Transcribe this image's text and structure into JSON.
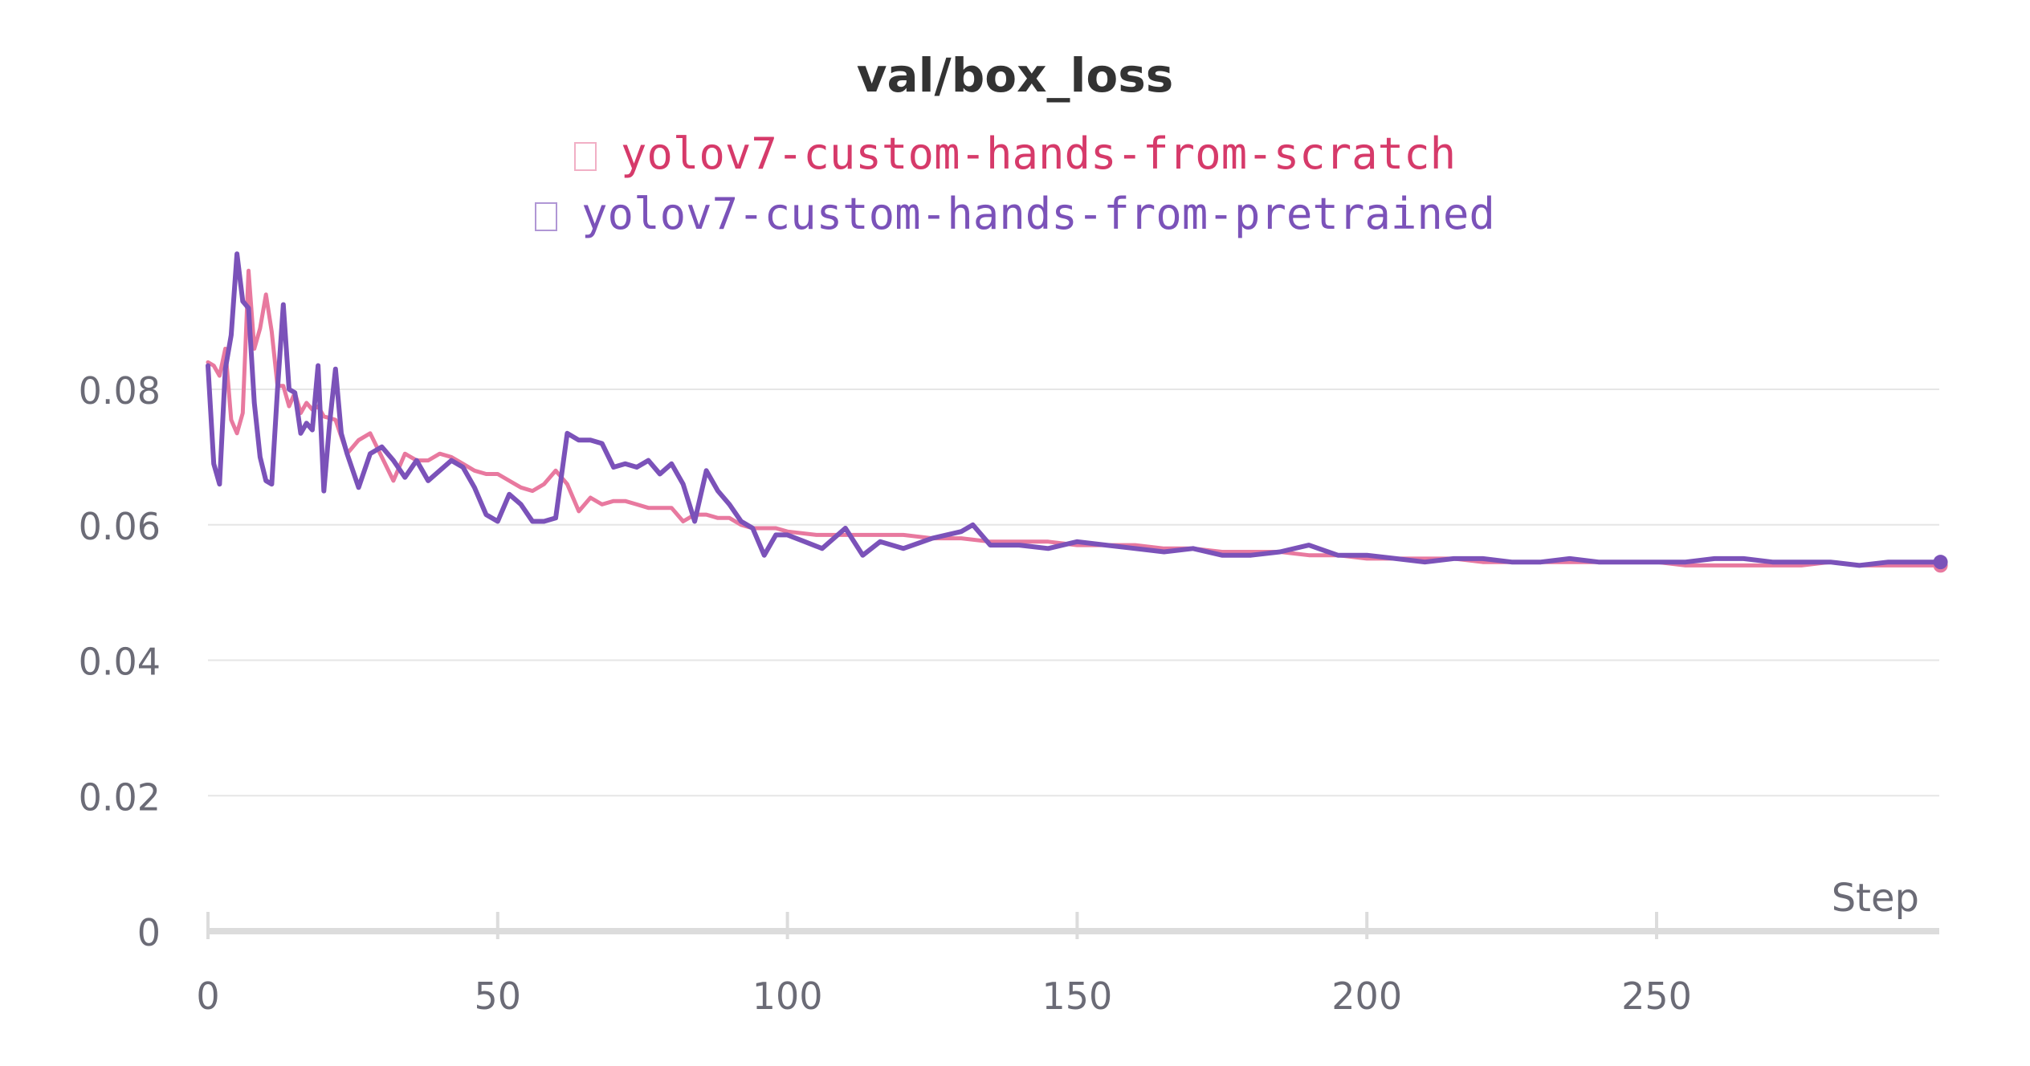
{
  "chart_data": {
    "type": "line",
    "title": "val/box_loss",
    "xlabel": "Step",
    "ylabel": "",
    "xlim": [
      0,
      300
    ],
    "ylim": [
      0,
      0.1
    ],
    "x_ticks": [
      "0",
      "50",
      "100",
      "150",
      "200",
      "250"
    ],
    "x_tick_values": [
      0,
      50,
      100,
      150,
      200,
      250
    ],
    "y_ticks": [
      "0",
      "0.02",
      "0.04",
      "0.06",
      "0.08"
    ],
    "y_tick_values": [
      0,
      0.02,
      0.04,
      0.06,
      0.08
    ],
    "grid": true,
    "legend_position": "top-center",
    "series": [
      {
        "name": "yolov7-custom-hands-from-scratch",
        "color": "#e8799f",
        "text_color": "#d63a6a",
        "x": [
          0,
          1,
          2,
          3,
          4,
          5,
          6,
          7,
          8,
          9,
          10,
          11,
          12,
          13,
          14,
          15,
          16,
          17,
          18,
          19,
          20,
          22,
          24,
          26,
          28,
          30,
          32,
          34,
          36,
          38,
          40,
          42,
          44,
          46,
          48,
          50,
          52,
          54,
          56,
          58,
          60,
          62,
          64,
          66,
          68,
          70,
          72,
          74,
          76,
          78,
          80,
          82,
          84,
          86,
          88,
          90,
          92,
          94,
          96,
          98,
          100,
          105,
          110,
          115,
          120,
          125,
          130,
          135,
          140,
          145,
          150,
          155,
          160,
          165,
          170,
          175,
          180,
          185,
          190,
          195,
          200,
          205,
          210,
          215,
          220,
          225,
          230,
          235,
          240,
          245,
          250,
          255,
          260,
          265,
          270,
          275,
          280,
          285,
          290,
          295,
          299
        ],
        "y": [
          0.084,
          0.0835,
          0.082,
          0.086,
          0.0755,
          0.0735,
          0.0765,
          0.0975,
          0.086,
          0.089,
          0.094,
          0.0885,
          0.0805,
          0.0805,
          0.0775,
          0.0795,
          0.0765,
          0.078,
          0.077,
          0.0775,
          0.076,
          0.0755,
          0.0705,
          0.0725,
          0.0735,
          0.07,
          0.0665,
          0.0705,
          0.0695,
          0.0695,
          0.0705,
          0.07,
          0.069,
          0.068,
          0.0675,
          0.0675,
          0.0665,
          0.0655,
          0.065,
          0.066,
          0.068,
          0.066,
          0.062,
          0.064,
          0.063,
          0.0635,
          0.0635,
          0.063,
          0.0625,
          0.0625,
          0.0625,
          0.0605,
          0.0615,
          0.0615,
          0.061,
          0.061,
          0.06,
          0.0595,
          0.0595,
          0.0595,
          0.059,
          0.0585,
          0.0585,
          0.0585,
          0.0585,
          0.058,
          0.058,
          0.0575,
          0.0575,
          0.0575,
          0.057,
          0.057,
          0.057,
          0.0565,
          0.0565,
          0.056,
          0.056,
          0.056,
          0.0555,
          0.0555,
          0.055,
          0.055,
          0.055,
          0.055,
          0.0545,
          0.0545,
          0.0545,
          0.0545,
          0.0545,
          0.0545,
          0.0545,
          0.054,
          0.054,
          0.054,
          0.054,
          0.054,
          0.0545,
          0.054,
          0.054,
          0.054,
          0.054
        ]
      },
      {
        "name": "yolov7-custom-hands-from-pretrained",
        "color": "#7b52b9",
        "text_color": "#7b52b9",
        "x": [
          0,
          1,
          2,
          3,
          4,
          5,
          6,
          7,
          8,
          9,
          10,
          11,
          12,
          13,
          14,
          15,
          16,
          17,
          18,
          19,
          20,
          21,
          22,
          23,
          24,
          26,
          28,
          30,
          32,
          34,
          36,
          38,
          40,
          42,
          44,
          46,
          48,
          50,
          52,
          54,
          56,
          58,
          60,
          62,
          64,
          66,
          68,
          70,
          72,
          74,
          76,
          78,
          80,
          82,
          84,
          86,
          88,
          90,
          92,
          94,
          96,
          98,
          100,
          103,
          106,
          110,
          113,
          116,
          120,
          125,
          130,
          132,
          135,
          140,
          145,
          150,
          155,
          160,
          165,
          170,
          175,
          180,
          185,
          190,
          195,
          200,
          205,
          210,
          215,
          220,
          225,
          230,
          235,
          240,
          245,
          250,
          255,
          260,
          265,
          270,
          275,
          280,
          285,
          290,
          295,
          299
        ],
        "y": [
          0.0835,
          0.069,
          0.066,
          0.083,
          0.088,
          0.1,
          0.093,
          0.092,
          0.078,
          0.07,
          0.0665,
          0.066,
          0.08,
          0.0925,
          0.08,
          0.0795,
          0.0735,
          0.075,
          0.074,
          0.0835,
          0.065,
          0.075,
          0.083,
          0.0735,
          0.0705,
          0.0655,
          0.0705,
          0.0715,
          0.0695,
          0.067,
          0.0695,
          0.0665,
          0.068,
          0.0695,
          0.0685,
          0.0655,
          0.0615,
          0.0605,
          0.0645,
          0.063,
          0.0605,
          0.0605,
          0.061,
          0.0735,
          0.0725,
          0.0725,
          0.072,
          0.0685,
          0.069,
          0.0685,
          0.0695,
          0.0675,
          0.069,
          0.066,
          0.0605,
          0.068,
          0.065,
          0.063,
          0.0605,
          0.0595,
          0.0555,
          0.0585,
          0.0585,
          0.0575,
          0.0565,
          0.0595,
          0.0555,
          0.0575,
          0.0565,
          0.058,
          0.059,
          0.06,
          0.057,
          0.057,
          0.0565,
          0.0575,
          0.057,
          0.0565,
          0.056,
          0.0565,
          0.0555,
          0.0555,
          0.056,
          0.057,
          0.0555,
          0.0555,
          0.055,
          0.0545,
          0.055,
          0.055,
          0.0545,
          0.0545,
          0.055,
          0.0545,
          0.0545,
          0.0545,
          0.0545,
          0.055,
          0.055,
          0.0545,
          0.0545,
          0.0545,
          0.054,
          0.0545,
          0.0545,
          0.0545
        ]
      }
    ]
  }
}
